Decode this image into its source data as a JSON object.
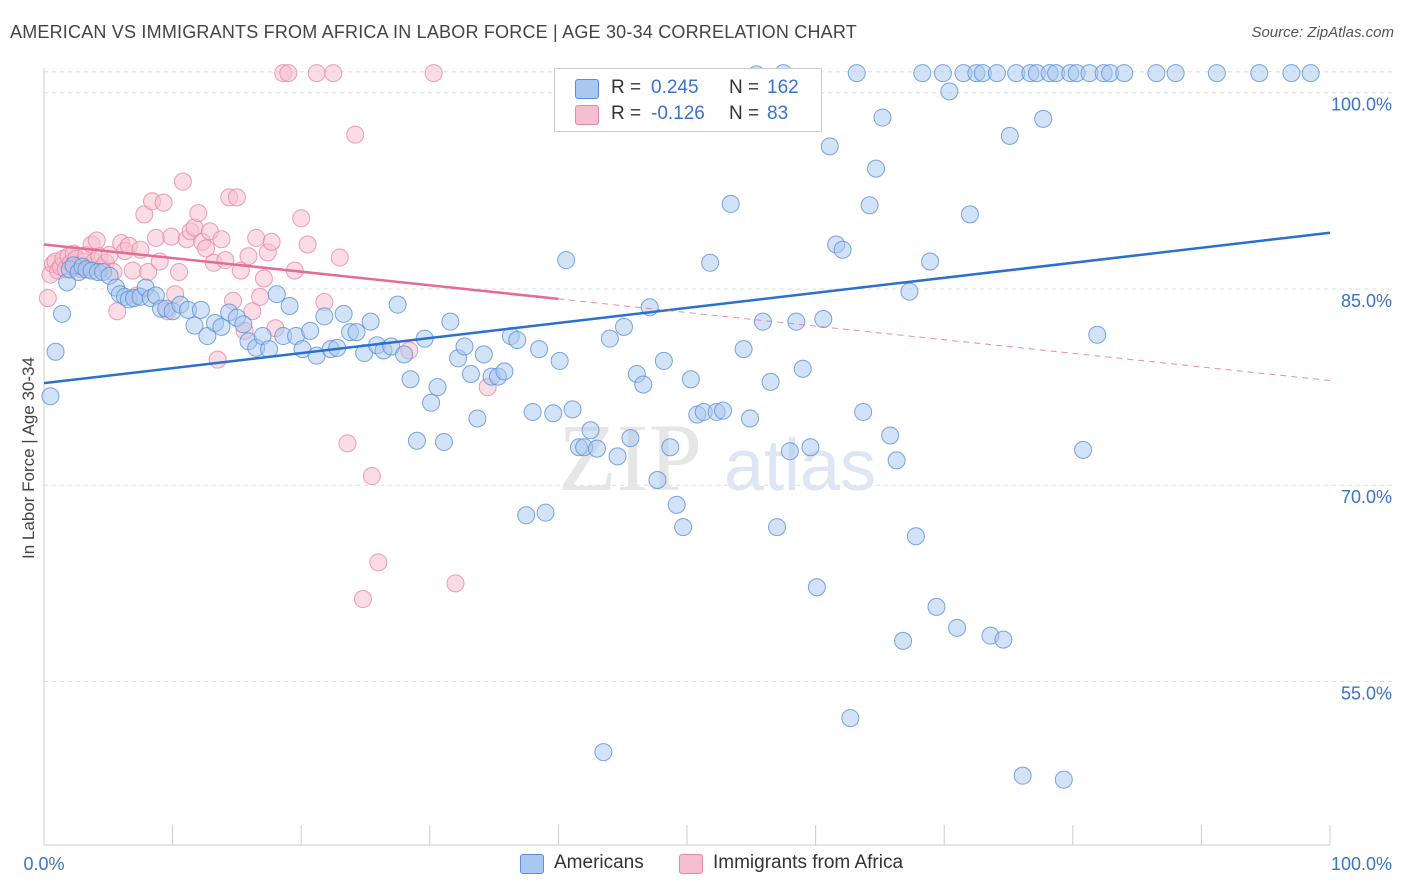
{
  "header": {
    "title": "AMERICAN VS IMMIGRANTS FROM AFRICA IN LABOR FORCE | AGE 30-34 CORRELATION CHART",
    "source": "Source: ZipAtlas.com"
  },
  "legend": {
    "rows": [
      {
        "r_label": "R =",
        "r_value": "0.245",
        "n_label": "N =",
        "n_value": "162"
      },
      {
        "r_label": "R =",
        "r_value": "-0.126",
        "n_label": "N =",
        "n_value": "83"
      }
    ]
  },
  "watermark": {
    "zip": "ZIP",
    "atlas": "atlas"
  },
  "colors": {
    "americans_fill": "#a8c8f0",
    "americans_stroke": "#5b8fd6",
    "americans_line": "#2b6fcf",
    "africa_fill": "#f6bfd0",
    "africa_stroke": "#e886a6",
    "africa_line": "#e56b94",
    "axis_label": "#3a73c9",
    "grid": "#dddddd"
  },
  "chart_data": {
    "type": "scatter",
    "title": "AMERICAN VS IMMIGRANTS FROM AFRICA IN LABOR FORCE | AGE 30-34 CORRELATION CHART",
    "xlabel": "",
    "ylabel": "In Labor Force | Age 30-34",
    "xlim": [
      0,
      100
    ],
    "ylim": [
      41,
      101
    ],
    "x_tick_labels": [
      "0.0%",
      "100.0%"
    ],
    "y_ticks": [
      55,
      70,
      85,
      100
    ],
    "y_tick_labels": [
      "55.0%",
      "70.0%",
      "85.0%",
      "100.0%"
    ],
    "grid": true,
    "legend_position": "top-center",
    "series": [
      {
        "name": "Americans",
        "r": 0.245,
        "n": 162,
        "trend": {
          "x": [
            0,
            100
          ],
          "y": [
            76.3,
            87.8
          ],
          "dashed_after": null
        },
        "points": [
          [
            0.5,
            75.3
          ],
          [
            0.9,
            78.7
          ],
          [
            1.4,
            81.6
          ],
          [
            1.8,
            84.0
          ],
          [
            2.0,
            85.0
          ],
          [
            2.3,
            85.3
          ],
          [
            2.7,
            84.8
          ],
          [
            3.0,
            85.2
          ],
          [
            3.3,
            85.0
          ],
          [
            3.7,
            84.9
          ],
          [
            4.2,
            84.8
          ],
          [
            4.6,
            84.8
          ],
          [
            5.1,
            84.5
          ],
          [
            5.6,
            83.6
          ],
          [
            5.9,
            83.1
          ],
          [
            6.3,
            82.9
          ],
          [
            6.6,
            82.7
          ],
          [
            7.0,
            82.8
          ],
          [
            7.5,
            82.9
          ],
          [
            7.9,
            83.6
          ],
          [
            8.3,
            82.8
          ],
          [
            8.7,
            83.0
          ],
          [
            9.1,
            82.0
          ],
          [
            9.5,
            82.0
          ],
          [
            10.0,
            81.8
          ],
          [
            10.6,
            82.3
          ],
          [
            11.2,
            81.9
          ],
          [
            11.7,
            80.7
          ],
          [
            12.2,
            81.9
          ],
          [
            12.7,
            79.9
          ],
          [
            13.3,
            80.9
          ],
          [
            13.8,
            80.6
          ],
          [
            14.4,
            81.7
          ],
          [
            15.0,
            81.3
          ],
          [
            15.5,
            80.8
          ],
          [
            15.9,
            79.5
          ],
          [
            16.5,
            79.0
          ],
          [
            17.0,
            79.9
          ],
          [
            17.5,
            78.9
          ],
          [
            18.1,
            83.1
          ],
          [
            18.6,
            79.9
          ],
          [
            19.1,
            82.2
          ],
          [
            19.6,
            79.9
          ],
          [
            20.1,
            78.9
          ],
          [
            20.7,
            80.3
          ],
          [
            21.2,
            78.4
          ],
          [
            21.8,
            81.4
          ],
          [
            22.3,
            78.9
          ],
          [
            22.8,
            79.0
          ],
          [
            23.3,
            81.6
          ],
          [
            23.8,
            80.2
          ],
          [
            24.3,
            80.2
          ],
          [
            24.9,
            78.6
          ],
          [
            25.4,
            81.0
          ],
          [
            25.9,
            79.2
          ],
          [
            26.4,
            78.8
          ],
          [
            27.0,
            79.1
          ],
          [
            27.5,
            82.3
          ],
          [
            28.0,
            78.5
          ],
          [
            28.5,
            76.6
          ],
          [
            29.0,
            71.9
          ],
          [
            29.6,
            79.7
          ],
          [
            30.1,
            74.8
          ],
          [
            30.6,
            76.0
          ],
          [
            31.1,
            71.8
          ],
          [
            31.6,
            81.0
          ],
          [
            32.2,
            78.2
          ],
          [
            32.7,
            79.1
          ],
          [
            33.2,
            77.0
          ],
          [
            33.7,
            73.6
          ],
          [
            34.2,
            78.5
          ],
          [
            34.8,
            76.8
          ],
          [
            35.3,
            76.8
          ],
          [
            35.8,
            77.2
          ],
          [
            36.3,
            79.9
          ],
          [
            36.8,
            79.6
          ],
          [
            37.5,
            66.2
          ],
          [
            38.0,
            74.1
          ],
          [
            38.5,
            78.9
          ],
          [
            39.0,
            66.4
          ],
          [
            39.6,
            74.0
          ],
          [
            40.1,
            78.0
          ],
          [
            40.6,
            85.7
          ],
          [
            41.1,
            74.3
          ],
          [
            41.6,
            71.4
          ],
          [
            42.0,
            71.4
          ],
          [
            42.5,
            72.7
          ],
          [
            43.0,
            71.3
          ],
          [
            43.5,
            48.1
          ],
          [
            44.0,
            79.7
          ],
          [
            44.6,
            70.7
          ],
          [
            45.1,
            80.6
          ],
          [
            45.6,
            72.1
          ],
          [
            46.1,
            77.0
          ],
          [
            46.6,
            76.2
          ],
          [
            47.1,
            82.1
          ],
          [
            47.7,
            68.9
          ],
          [
            48.2,
            78.0
          ],
          [
            48.7,
            71.4
          ],
          [
            49.2,
            67.0
          ],
          [
            49.7,
            65.3
          ],
          [
            50.3,
            76.6
          ],
          [
            50.8,
            73.9
          ],
          [
            51.3,
            74.1
          ],
          [
            51.8,
            85.5
          ],
          [
            52.3,
            74.1
          ],
          [
            52.8,
            74.2
          ],
          [
            53.4,
            90.0
          ],
          [
            53.9,
            96.5
          ],
          [
            54.4,
            78.9
          ],
          [
            54.9,
            73.6
          ],
          [
            55.4,
            99.9
          ],
          [
            55.9,
            81.0
          ],
          [
            56.5,
            76.4
          ],
          [
            57.0,
            65.3
          ],
          [
            57.5,
            100.0
          ],
          [
            58.0,
            71.1
          ],
          [
            58.5,
            81.0
          ],
          [
            59.0,
            77.4
          ],
          [
            59.6,
            71.4
          ],
          [
            60.1,
            60.7
          ],
          [
            60.6,
            81.2
          ],
          [
            61.1,
            94.4
          ],
          [
            61.6,
            86.9
          ],
          [
            62.1,
            86.5
          ],
          [
            62.7,
            50.7
          ],
          [
            63.2,
            100.0
          ],
          [
            63.7,
            74.1
          ],
          [
            64.2,
            89.9
          ],
          [
            64.7,
            92.7
          ],
          [
            65.2,
            96.6
          ],
          [
            65.8,
            72.3
          ],
          [
            66.3,
            70.4
          ],
          [
            66.8,
            56.6
          ],
          [
            67.3,
            83.3
          ],
          [
            67.8,
            64.6
          ],
          [
            68.3,
            100.0
          ],
          [
            68.9,
            85.6
          ],
          [
            69.4,
            59.2
          ],
          [
            69.9,
            100.0
          ],
          [
            70.4,
            98.6
          ],
          [
            71.0,
            57.6
          ],
          [
            71.5,
            100.0
          ],
          [
            72.0,
            89.2
          ],
          [
            72.5,
            100.0
          ],
          [
            73.0,
            100.0
          ],
          [
            73.6,
            57.0
          ],
          [
            74.1,
            100.0
          ],
          [
            74.6,
            56.7
          ],
          [
            75.1,
            95.2
          ],
          [
            75.6,
            100.0
          ],
          [
            76.1,
            46.3
          ],
          [
            76.7,
            100.0
          ],
          [
            77.2,
            100.0
          ],
          [
            77.7,
            96.5
          ],
          [
            78.2,
            100.0
          ],
          [
            78.7,
            100.0
          ],
          [
            79.3,
            46.0
          ],
          [
            79.8,
            100.0
          ],
          [
            80.3,
            100.0
          ],
          [
            80.8,
            71.2
          ],
          [
            81.3,
            100.0
          ],
          [
            81.9,
            80.0
          ],
          [
            82.4,
            100.0
          ],
          [
            82.9,
            100.0
          ],
          [
            84.0,
            100.0
          ],
          [
            86.5,
            100.0
          ],
          [
            88.0,
            100.0
          ],
          [
            91.2,
            100.0
          ],
          [
            94.5,
            100.0
          ],
          [
            97.0,
            100.0
          ],
          [
            98.5,
            100.0
          ]
        ]
      },
      {
        "name": "Immigrants from Africa",
        "r": -0.126,
        "n": 83,
        "trend": {
          "x": [
            0,
            100
          ],
          "y": [
            86.9,
            76.5
          ],
          "dashed_after": 40
        },
        "points": [
          [
            0.3,
            82.8
          ],
          [
            0.5,
            84.6
          ],
          [
            0.7,
            85.4
          ],
          [
            0.9,
            85.6
          ],
          [
            1.1,
            84.9
          ],
          [
            1.3,
            85.2
          ],
          [
            1.5,
            85.8
          ],
          [
            1.7,
            85.0
          ],
          [
            1.9,
            86.0
          ],
          [
            2.1,
            85.5
          ],
          [
            2.3,
            86.2
          ],
          [
            2.5,
            85.8
          ],
          [
            2.7,
            85.3
          ],
          [
            2.9,
            85.0
          ],
          [
            3.1,
            85.6
          ],
          [
            3.3,
            86.1
          ],
          [
            3.5,
            85.2
          ],
          [
            3.7,
            86.9
          ],
          [
            3.9,
            85.6
          ],
          [
            4.1,
            87.2
          ],
          [
            4.3,
            86.0
          ],
          [
            4.5,
            85.1
          ],
          [
            4.8,
            85.5
          ],
          [
            5.1,
            86.1
          ],
          [
            5.4,
            84.8
          ],
          [
            5.7,
            81.8
          ],
          [
            6.0,
            87.0
          ],
          [
            6.3,
            86.4
          ],
          [
            6.6,
            86.8
          ],
          [
            6.9,
            84.9
          ],
          [
            7.2,
            83.0
          ],
          [
            7.5,
            86.5
          ],
          [
            7.8,
            89.2
          ],
          [
            8.1,
            84.8
          ],
          [
            8.4,
            90.2
          ],
          [
            8.7,
            87.4
          ],
          [
            9.0,
            85.6
          ],
          [
            9.3,
            90.1
          ],
          [
            9.6,
            81.8
          ],
          [
            9.9,
            87.5
          ],
          [
            10.2,
            83.1
          ],
          [
            10.5,
            84.8
          ],
          [
            10.8,
            91.7
          ],
          [
            11.1,
            87.3
          ],
          [
            11.4,
            87.9
          ],
          [
            11.7,
            88.2
          ],
          [
            12.0,
            89.3
          ],
          [
            12.3,
            87.1
          ],
          [
            12.6,
            86.6
          ],
          [
            12.9,
            87.9
          ],
          [
            13.2,
            85.5
          ],
          [
            13.5,
            78.1
          ],
          [
            13.8,
            87.3
          ],
          [
            14.1,
            85.7
          ],
          [
            14.4,
            90.5
          ],
          [
            14.7,
            82.6
          ],
          [
            15.0,
            90.5
          ],
          [
            15.3,
            84.9
          ],
          [
            15.6,
            80.3
          ],
          [
            15.9,
            86.0
          ],
          [
            16.2,
            81.8
          ],
          [
            16.5,
            87.4
          ],
          [
            16.8,
            82.9
          ],
          [
            17.1,
            84.3
          ],
          [
            17.4,
            86.3
          ],
          [
            17.7,
            87.1
          ],
          [
            18.0,
            80.5
          ],
          [
            18.6,
            100.0
          ],
          [
            19.0,
            100.0
          ],
          [
            19.5,
            84.9
          ],
          [
            20.0,
            88.9
          ],
          [
            20.5,
            86.9
          ],
          [
            21.2,
            100.0
          ],
          [
            21.8,
            82.5
          ],
          [
            22.5,
            100.0
          ],
          [
            23.0,
            85.9
          ],
          [
            23.6,
            71.7
          ],
          [
            24.2,
            95.3
          ],
          [
            24.8,
            59.8
          ],
          [
            25.5,
            69.2
          ],
          [
            26.0,
            62.6
          ],
          [
            28.4,
            78.8
          ],
          [
            30.3,
            100.0
          ],
          [
            32.0,
            61.0
          ],
          [
            34.5,
            76.0
          ]
        ]
      }
    ]
  }
}
